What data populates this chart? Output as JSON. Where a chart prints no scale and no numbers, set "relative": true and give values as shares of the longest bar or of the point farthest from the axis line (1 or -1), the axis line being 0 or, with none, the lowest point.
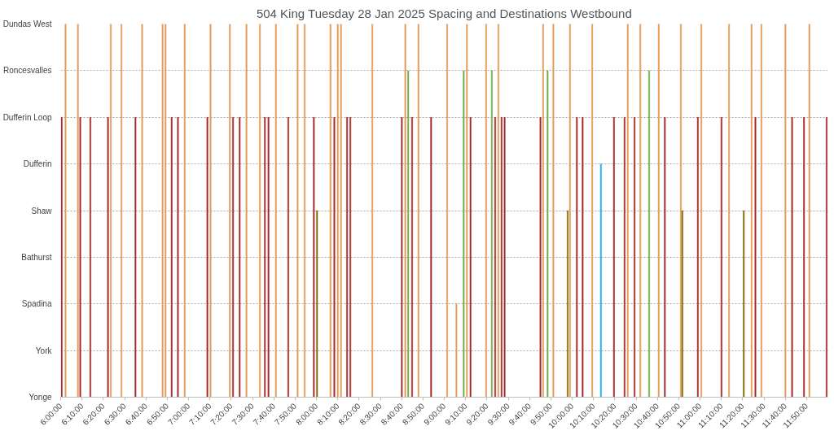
{
  "chart_data": {
    "type": "bar",
    "title": "504 King Tuesday 28 Jan 2025 Spacing and Destinations Westbound",
    "x": [
      6.008,
      6.038,
      6.135,
      6.153,
      6.232,
      6.37,
      6.392,
      6.475,
      6.585,
      6.637,
      6.797,
      6.82,
      6.868,
      6.917,
      6.97,
      7.147,
      7.172,
      7.323,
      7.348,
      7.4,
      7.453,
      7.558,
      7.597,
      7.625,
      7.683,
      7.78,
      7.853,
      7.908,
      7.98,
      8.005,
      8.11,
      8.14,
      8.167,
      8.192,
      8.24,
      8.265,
      8.437,
      8.668,
      8.695,
      8.718,
      8.748,
      8.798,
      8.897,
      9.022,
      9.095,
      9.152,
      9.177,
      9.205,
      9.327,
      9.372,
      9.398,
      9.423,
      9.448,
      9.472,
      9.752,
      9.773,
      9.808,
      9.853,
      9.965,
      9.983,
      10.037,
      10.082,
      10.157,
      10.225,
      10.327,
      10.41,
      10.435,
      10.488,
      10.533,
      10.602,
      10.677,
      10.725,
      10.85,
      10.862,
      10.983,
      11.01,
      11.168,
      11.227,
      11.342,
      11.403,
      11.433,
      11.48,
      11.668,
      11.72,
      11.813,
      11.855,
      11.99
    ],
    "values": [
      0.75,
      1,
      1,
      0.75,
      0.75,
      0.75,
      1,
      1,
      0.75,
      1,
      1,
      1,
      0.75,
      0.75,
      1,
      0.75,
      1,
      1,
      0.75,
      0.75,
      1,
      1,
      0.75,
      0.75,
      1,
      0.75,
      1,
      1,
      0.75,
      0.5,
      1,
      0.75,
      1,
      1,
      0.75,
      0.75,
      1,
      0.75,
      1,
      0.875,
      0.75,
      1,
      0.75,
      1,
      0.25,
      0.875,
      1,
      0.75,
      1,
      0.875,
      0.75,
      1,
      0.75,
      0.75,
      0.75,
      1,
      0.875,
      1,
      0.5,
      1,
      0.75,
      0.75,
      1,
      0.625,
      0.75,
      0.75,
      1,
      0.75,
      1,
      0.875,
      1,
      0.75,
      1,
      0.5,
      0.75,
      1,
      0.75,
      1,
      0.5,
      1,
      0.75,
      1,
      1,
      0.75,
      0.75,
      1,
      0.75
    ],
    "relative": true,
    "colors": [
      "#a5282b",
      "#e39a57",
      "#e39a57",
      "#a5282b",
      "#a5282b",
      "#a5282b",
      "#e39a57",
      "#e39a57",
      "#a5282b",
      "#e39a57",
      "#e39a57",
      "#e39a57",
      "#a5282b",
      "#a5282b",
      "#e39a57",
      "#a5282b",
      "#e39a57",
      "#e39a57",
      "#a5282b",
      "#a5282b",
      "#e39a57",
      "#e39a57",
      "#a5282b",
      "#a5282b",
      "#e39a57",
      "#a5282b",
      "#e39a57",
      "#e39a57",
      "#a5282b",
      "#7f6b00",
      "#e39a57",
      "#a5282b",
      "#e39a57",
      "#e39a57",
      "#a5282b",
      "#a5282b",
      "#e39a57",
      "#a5282b",
      "#e39a57",
      "#70ad47",
      "#a5282b",
      "#e39a57",
      "#a5282b",
      "#e39a57",
      "#e0a060",
      "#70ad47",
      "#e39a57",
      "#a5282b",
      "#e39a57",
      "#70ad47",
      "#a5282b",
      "#e39a57",
      "#a5282b",
      "#a5282b",
      "#a5282b",
      "#e39a57",
      "#70ad47",
      "#e39a57",
      "#7f6b00",
      "#e39a57",
      "#a5282b",
      "#a5282b",
      "#e39a57",
      "#1fb0e6",
      "#a5282b",
      "#a5282b",
      "#e39a57",
      "#a5282b",
      "#e39a57",
      "#70ad47",
      "#e39a57",
      "#a5282b",
      "#e39a57",
      "#7f6b00",
      "#a5282b",
      "#e39a57",
      "#a5282b",
      "#e39a57",
      "#7f6b00",
      "#e39a57",
      "#a5282b",
      "#e39a57",
      "#e39a57",
      "#a5282b",
      "#a5282b",
      "#e39a57",
      "#a5282b"
    ],
    "xlim": [
      6,
      12
    ],
    "xticks": [
      {
        "value": 6,
        "label": "6:00:00"
      },
      {
        "value": 6.1667,
        "label": "6:10:00"
      },
      {
        "value": 6.3333,
        "label": "6:20:00"
      },
      {
        "value": 6.5,
        "label": "6:30:00"
      },
      {
        "value": 6.6667,
        "label": "6:40:00"
      },
      {
        "value": 6.8333,
        "label": "6:50:00"
      },
      {
        "value": 7,
        "label": "7:00:00"
      },
      {
        "value": 7.1667,
        "label": "7:10:00"
      },
      {
        "value": 7.3333,
        "label": "7:20:00"
      },
      {
        "value": 7.5,
        "label": "7:30:00"
      },
      {
        "value": 7.6667,
        "label": "7:40:00"
      },
      {
        "value": 7.8333,
        "label": "7:50:00"
      },
      {
        "value": 8,
        "label": "8:00:00"
      },
      {
        "value": 8.1667,
        "label": "8:10:00"
      },
      {
        "value": 8.3333,
        "label": "8:20:00"
      },
      {
        "value": 8.5,
        "label": "8:30:00"
      },
      {
        "value": 8.6667,
        "label": "8:40:00"
      },
      {
        "value": 8.8333,
        "label": "8:50:00"
      },
      {
        "value": 9,
        "label": "9:00:00"
      },
      {
        "value": 9.1667,
        "label": "9:10:00"
      },
      {
        "value": 9.3333,
        "label": "9:20:00"
      },
      {
        "value": 9.5,
        "label": "9:30:00"
      },
      {
        "value": 9.6667,
        "label": "9:40:00"
      },
      {
        "value": 9.8333,
        "label": "9:50:00"
      },
      {
        "value": 10,
        "label": "10:00:00"
      },
      {
        "value": 10.1667,
        "label": "10:10:00"
      },
      {
        "value": 10.3333,
        "label": "10:20:00"
      },
      {
        "value": 10.5,
        "label": "10:30:00"
      },
      {
        "value": 10.6667,
        "label": "10:40:00"
      },
      {
        "value": 10.8333,
        "label": "10:50:00"
      },
      {
        "value": 11,
        "label": "11:00:00"
      },
      {
        "value": 11.1667,
        "label": "11:10:00"
      },
      {
        "value": 11.3333,
        "label": "11:20:00"
      },
      {
        "value": 11.5,
        "label": "11:30:00"
      },
      {
        "value": 11.6667,
        "label": "11:40:00"
      },
      {
        "value": 11.8333,
        "label": "11:50:00"
      }
    ],
    "annotations": [
      "Yonge",
      "York",
      "Spadina",
      "Bathurst",
      "Shaw",
      "Dufferin",
      "Dufferin Loop",
      "Roncesvalles",
      "Dundas West"
    ],
    "grid": "y"
  }
}
